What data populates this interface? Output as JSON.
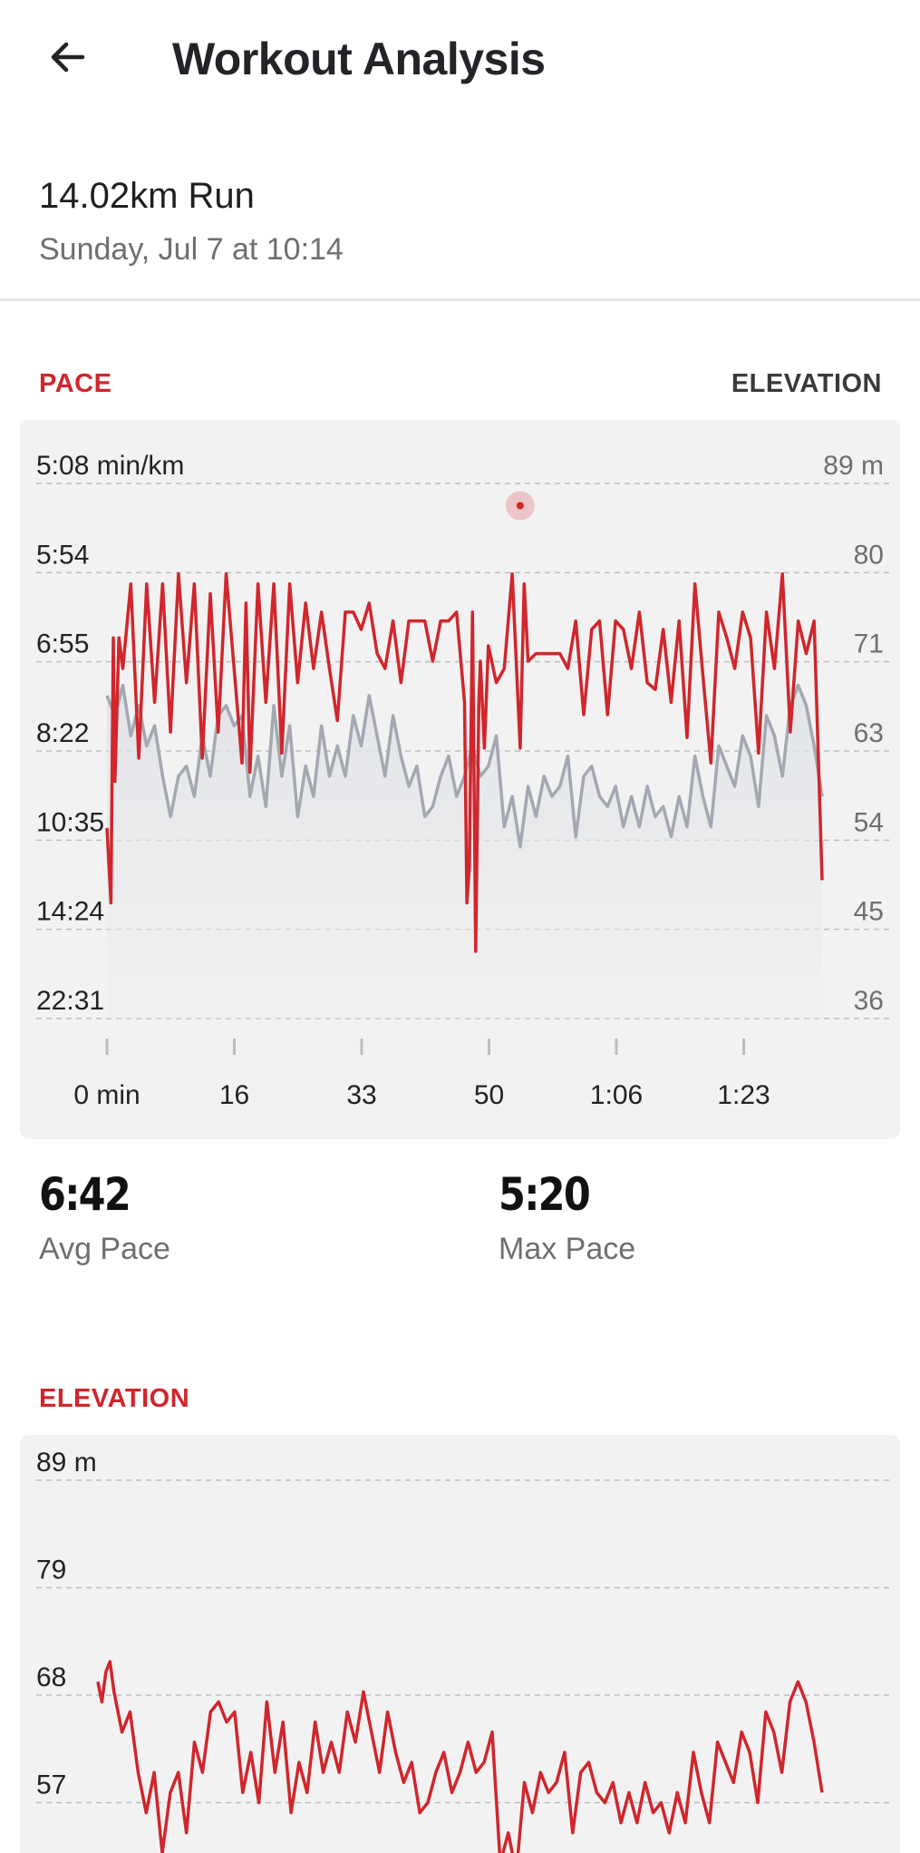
{
  "app_bar": {
    "title": "Workout Analysis",
    "back_icon": "arrow-left-icon"
  },
  "workout": {
    "name": "14.02km Run",
    "date": "Sunday, Jul 7 at 10:14"
  },
  "pace_section": {
    "title": "PACE",
    "toggle_label": "ELEVATION",
    "stats": {
      "avg_value": "6:42",
      "avg_label": "Avg Pace",
      "max_value": "5:20",
      "max_label": "Max Pace"
    }
  },
  "elevation_section": {
    "title": "ELEVATION"
  },
  "colors": {
    "accent": "#d0262c",
    "elevation_line": "#a3a8b2",
    "card_bg": "#f2f2f2"
  },
  "chart_data": [
    {
      "type": "line",
      "left_axis_ticks": [
        "5:08 min/km",
        "5:54",
        "6:55",
        "8:22",
        "10:35",
        "14:24",
        "22:31"
      ],
      "right_axis_ticks": [
        "89 m",
        "80",
        "71",
        "63",
        "54",
        "45",
        "36"
      ],
      "x_ticks": [
        "0 min",
        "16",
        "33",
        "50",
        "1:06",
        "1:23"
      ],
      "x_range_min": [
        0,
        90
      ],
      "pace_range_min_per_km": [
        5.13,
        22.52
      ],
      "elevation_range_m": [
        36,
        89
      ],
      "highlight_marker": {
        "x_min": 52,
        "pace_min_per_km": 5.3
      },
      "series": [
        {
          "axis": "left",
          "x": [
            0,
            0.5,
            0.8,
            1,
            1.5,
            2,
            3,
            4,
            5,
            6,
            7,
            8,
            9,
            10,
            11,
            12,
            13,
            14,
            15,
            16,
            17,
            17.5,
            18,
            19,
            20,
            21,
            22,
            23,
            24,
            25,
            26,
            27,
            28,
            29,
            30,
            31,
            32,
            33,
            34,
            35,
            36,
            37,
            38,
            39,
            40,
            41,
            42,
            43,
            44,
            45,
            45.3,
            45.6,
            46,
            46.4,
            46.8,
            47,
            47.5,
            48,
            49,
            50,
            51,
            52,
            52.5,
            53,
            54,
            55,
            56,
            57,
            58,
            59,
            60,
            61,
            62,
            63,
            64,
            65,
            66,
            67,
            68,
            69,
            70,
            71,
            72,
            73,
            74,
            75,
            76,
            77,
            78,
            79,
            80,
            81,
            82,
            83,
            84,
            85,
            86,
            87,
            88,
            89,
            90
          ],
          "values": [
            10.2,
            13.0,
            6.6,
            9.0,
            6.6,
            7.0,
            6.0,
            8.5,
            6.0,
            7.5,
            6.0,
            8.0,
            5.9,
            7.2,
            6.0,
            8.5,
            6.1,
            8.0,
            5.9,
            7.0,
            8.6,
            6.2,
            8.8,
            6.0,
            7.5,
            6.0,
            8.4,
            6.0,
            7.2,
            6.2,
            7.0,
            6.3,
            7.0,
            7.8,
            6.3,
            6.3,
            6.5,
            6.2,
            6.8,
            7.0,
            6.4,
            7.2,
            6.4,
            6.4,
            6.4,
            6.9,
            6.4,
            6.4,
            6.3,
            7.5,
            13.0,
            11.5,
            6.3,
            15.8,
            7.5,
            6.9,
            8.3,
            6.7,
            7.2,
            7.0,
            5.9,
            8.3,
            6.0,
            6.9,
            6.8,
            6.8,
            6.8,
            6.8,
            7.0,
            6.4,
            7.7,
            6.5,
            6.4,
            7.7,
            6.4,
            6.5,
            7.0,
            6.3,
            7.2,
            7.3,
            6.5,
            7.5,
            6.4,
            8.1,
            6.0,
            7.1,
            8.6,
            6.3,
            6.6,
            7.0,
            6.3,
            6.6,
            8.4,
            6.3,
            7.0,
            5.9,
            8.0,
            6.4,
            6.8,
            6.4,
            12.0
          ]
        },
        {
          "axis": "right",
          "x": [
            0,
            1,
            2,
            3,
            4,
            5,
            6,
            7,
            8,
            9,
            10,
            11,
            12,
            13,
            14,
            15,
            16,
            17,
            18,
            19,
            20,
            21,
            22,
            23,
            24,
            25,
            26,
            27,
            28,
            29,
            30,
            31,
            32,
            33,
            34,
            35,
            36,
            37,
            38,
            39,
            40,
            41,
            42,
            43,
            44,
            45,
            46,
            47,
            48,
            49,
            50,
            51,
            52,
            53,
            54,
            55,
            56,
            57,
            58,
            59,
            60,
            61,
            62,
            63,
            64,
            65,
            66,
            67,
            68,
            69,
            70,
            71,
            72,
            73,
            74,
            75,
            76,
            77,
            78,
            79,
            80,
            81,
            82,
            83,
            84,
            85,
            86,
            87,
            88,
            89,
            90
          ],
          "values": [
            68,
            66,
            69,
            64,
            67,
            63,
            65,
            60,
            56,
            60,
            61,
            58,
            64,
            60,
            66,
            67,
            65,
            66,
            58,
            62,
            57,
            67,
            60,
            65,
            56,
            61,
            58,
            65,
            60,
            63,
            60,
            66,
            63,
            68,
            64,
            60,
            66,
            62,
            59,
            61,
            56,
            57,
            60,
            62,
            58,
            60,
            63,
            60,
            61,
            64,
            55,
            58,
            53,
            59,
            56,
            60,
            58,
            59,
            62,
            54,
            60,
            61,
            58,
            57,
            59,
            55,
            58,
            55,
            59,
            56,
            57,
            54,
            58,
            55,
            62,
            58,
            55,
            63,
            61,
            59,
            64,
            62,
            57,
            66,
            64,
            60,
            67,
            69,
            67,
            63,
            58
          ]
        }
      ]
    },
    {
      "type": "line",
      "y_axis_ticks": [
        "89 m",
        "79",
        "68",
        "57"
      ],
      "y_range_m": [
        46,
        89
      ],
      "x_range_min": [
        0,
        90
      ],
      "series": [
        {
          "x": [
            0,
            0.5,
            1,
            1.5,
            2,
            3,
            4,
            5,
            6,
            7,
            8,
            9,
            10,
            11,
            12,
            13,
            14,
            15,
            16,
            17,
            18,
            19,
            20,
            21,
            22,
            23,
            24,
            25,
            26,
            27,
            28,
            29,
            30,
            31,
            32,
            33,
            34,
            35,
            36,
            37,
            38,
            39,
            40,
            41,
            42,
            43,
            44,
            45,
            46,
            47,
            48,
            49,
            50,
            51,
            52,
            53,
            54,
            55,
            56,
            57,
            58,
            59,
            60,
            61,
            62,
            63,
            64,
            65,
            66,
            67,
            68,
            69,
            70,
            71,
            72,
            73,
            74,
            75,
            76,
            77,
            78,
            79,
            80,
            81,
            82,
            83,
            84,
            85,
            86,
            87,
            88,
            89,
            90
          ],
          "values": [
            69,
            67,
            70,
            71,
            68,
            64,
            66,
            60,
            56,
            60,
            52,
            58,
            60,
            54,
            63,
            60,
            66,
            67,
            65,
            66,
            58,
            62,
            57,
            67,
            60,
            65,
            56,
            61,
            58,
            65,
            60,
            63,
            60,
            66,
            63,
            68,
            64,
            60,
            66,
            62,
            59,
            61,
            56,
            57,
            60,
            62,
            58,
            60,
            63,
            60,
            61,
            64,
            51,
            54,
            50,
            59,
            56,
            60,
            58,
            59,
            62,
            54,
            60,
            61,
            58,
            57,
            59,
            55,
            58,
            55,
            59,
            56,
            57,
            54,
            58,
            55,
            62,
            58,
            55,
            63,
            61,
            59,
            64,
            62,
            57,
            66,
            64,
            60,
            67,
            69,
            67,
            63,
            58
          ]
        }
      ]
    }
  ]
}
